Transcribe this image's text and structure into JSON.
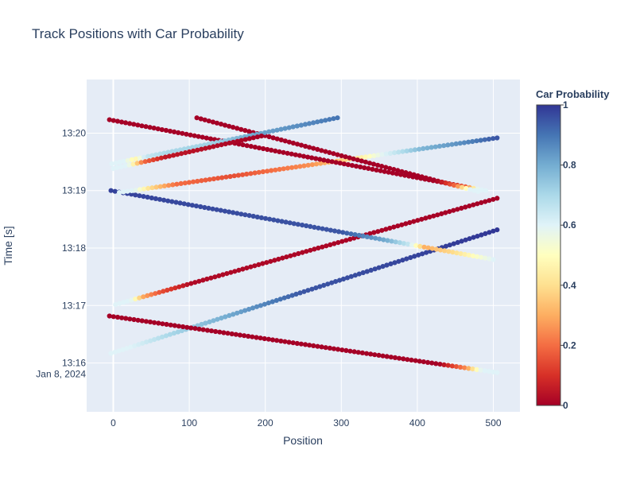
{
  "chart_data": {
    "type": "scatter",
    "title": "Track Positions with Car Probability",
    "xlabel": "Position",
    "ylabel": "Time [s]",
    "xlim": [
      -35,
      535
    ],
    "ylim": [
      "2024-01-08 13:15:09",
      "2024-01-08 13:20:56"
    ],
    "x_ticks": [
      0,
      100,
      200,
      300,
      400,
      500
    ],
    "y_ticks": [
      {
        "time": "2024-01-08 13:16:00",
        "label": "13:16",
        "sublabel": "Jan 8, 2024"
      },
      {
        "time": "2024-01-08 13:17:00",
        "label": "13:17"
      },
      {
        "time": "2024-01-08 13:18:00",
        "label": "13:18"
      },
      {
        "time": "2024-01-08 13:19:00",
        "label": "13:19"
      },
      {
        "time": "2024-01-08 13:20:00",
        "label": "13:20"
      }
    ],
    "grid": true,
    "colorbar": {
      "title": "Car Probability",
      "range": [
        0,
        1
      ],
      "ticks": [
        "0",
        "0.2",
        "0.4",
        "0.6",
        "0.8",
        "1"
      ],
      "colorscale": "RdYlBu",
      "stops": [
        [
          0.0,
          "#a50026"
        ],
        [
          0.1,
          "#d73027"
        ],
        [
          0.2,
          "#f46d43"
        ],
        [
          0.3,
          "#fdae61"
        ],
        [
          0.4,
          "#fee090"
        ],
        [
          0.5,
          "#ffffbf"
        ],
        [
          0.6,
          "#e0f3f8"
        ],
        [
          0.7,
          "#abd9e9"
        ],
        [
          0.8,
          "#74add1"
        ],
        [
          0.9,
          "#4575b4"
        ],
        [
          1.0,
          "#313695"
        ]
      ]
    },
    "tracks": [
      {
        "x_start": -3,
        "x_end": 505,
        "t_start": "2024-01-08 13:16:10",
        "t_end": "2024-01-08 13:18:19",
        "p_stops": [
          [
            0,
            0.6
          ],
          [
            0.05,
            0.6
          ],
          [
            0.15,
            0.7
          ],
          [
            0.3,
            0.8
          ],
          [
            0.5,
            0.95
          ],
          [
            1,
            1.0
          ]
        ]
      },
      {
        "x_start": -5,
        "x_end": 505,
        "t_start": "2024-01-08 13:16:49",
        "t_end": "2024-01-08 13:15:50",
        "p_stops": [
          [
            0,
            0.0
          ],
          [
            0.85,
            0.0
          ],
          [
            0.92,
            0.25
          ],
          [
            0.96,
            0.6
          ],
          [
            1,
            0.6
          ]
        ]
      },
      {
        "x_start": 3,
        "x_end": 505,
        "t_start": "2024-01-08 13:17:01",
        "t_end": "2024-01-08 13:18:52",
        "p_stops": [
          [
            0,
            0.6
          ],
          [
            0.04,
            0.6
          ],
          [
            0.07,
            0.3
          ],
          [
            0.12,
            0.15
          ],
          [
            0.2,
            0.02
          ],
          [
            1,
            0.0
          ]
        ]
      },
      {
        "x_start": -3,
        "x_end": 500,
        "t_start": "2024-01-08 13:19:00",
        "t_end": "2024-01-08 13:17:48",
        "p_stops": [
          [
            0,
            0.98
          ],
          [
            0.6,
            0.95
          ],
          [
            0.72,
            0.8
          ],
          [
            0.78,
            0.65
          ],
          [
            0.82,
            0.3
          ],
          [
            0.9,
            0.4
          ],
          [
            0.95,
            0.5
          ],
          [
            1,
            0.6
          ]
        ]
      },
      {
        "x_start": 8,
        "x_end": 505,
        "t_start": "2024-01-08 13:18:58",
        "t_end": "2024-01-08 13:19:55",
        "p_stops": [
          [
            0,
            0.6
          ],
          [
            0.04,
            0.6
          ],
          [
            0.08,
            0.4
          ],
          [
            0.15,
            0.2
          ],
          [
            0.3,
            0.15
          ],
          [
            0.5,
            0.25
          ],
          [
            0.62,
            0.4
          ],
          [
            0.7,
            0.6
          ],
          [
            0.8,
            0.78
          ],
          [
            0.9,
            0.85
          ],
          [
            1,
            0.95
          ]
        ]
      },
      {
        "x_start": -5,
        "x_end": 490,
        "t_start": "2024-01-08 13:20:14",
        "t_end": "2024-01-08 13:19:00",
        "p_stops": [
          [
            0,
            0.0
          ],
          [
            0.9,
            0.0
          ],
          [
            0.95,
            0.2
          ],
          [
            0.98,
            0.6
          ],
          [
            1,
            0.6
          ]
        ]
      },
      {
        "x_start": 110,
        "x_end": 480,
        "t_start": "2024-01-08 13:20:16",
        "t_end": "2024-01-08 13:18:59",
        "p_stops": [
          [
            0,
            0.0
          ],
          [
            0.85,
            0.0
          ],
          [
            0.92,
            0.2
          ],
          [
            0.97,
            0.6
          ],
          [
            1,
            0.6
          ]
        ]
      },
      {
        "x_start": -2,
        "x_end": 295,
        "t_start": "2024-01-08 13:19:28",
        "t_end": "2024-01-08 13:20:16",
        "p_stops": [
          [
            0,
            0.6
          ],
          [
            0.06,
            0.6
          ],
          [
            0.1,
            0.45
          ],
          [
            0.15,
            0.65
          ],
          [
            0.25,
            0.7
          ],
          [
            0.45,
            0.72
          ],
          [
            0.6,
            0.8
          ],
          [
            0.8,
            0.85
          ],
          [
            1,
            0.9
          ]
        ]
      },
      {
        "x_start": 0,
        "x_end": 195,
        "t_start": "2024-01-08 13:19:23",
        "t_end": "2024-01-08 13:19:57",
        "p_stops": [
          [
            0,
            0.6
          ],
          [
            0.1,
            0.6
          ],
          [
            0.15,
            0.4
          ],
          [
            0.2,
            0.2
          ],
          [
            0.35,
            0.05
          ],
          [
            1,
            0.0
          ]
        ]
      }
    ]
  }
}
